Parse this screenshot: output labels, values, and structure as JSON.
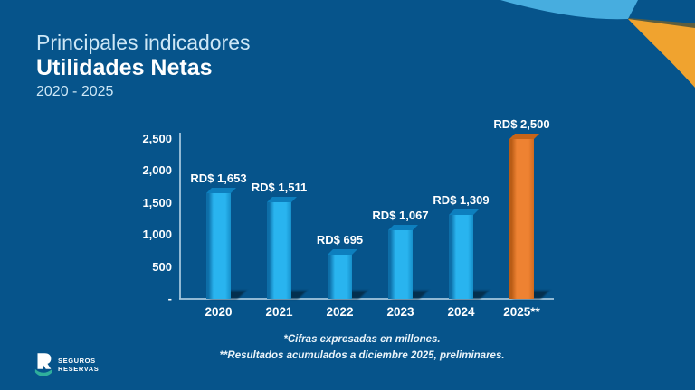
{
  "slide": {
    "title_line1": "Principales indicadores",
    "title_line2": "Utilidades Netas",
    "subtitle": "2020 - 2025",
    "footnotes": [
      "*Cifras expresadas en millones.",
      "**Resultados acumulados a diciembre 2025, preliminares."
    ],
    "logo": {
      "line1": "SEGUROS",
      "line2": "RESERVAS"
    }
  },
  "chart_data": {
    "type": "bar",
    "title": "Utilidades Netas 2020 - 2025",
    "categories": [
      "2020",
      "2021",
      "2022",
      "2023",
      "2024",
      "2025**"
    ],
    "values": [
      1653,
      1511,
      695,
      1067,
      1309,
      2500
    ],
    "labels": [
      "RD$ 1,653",
      "RD$ 1,511",
      "RD$ 695",
      "RD$ 1,067",
      "RD$ 1,309",
      "RD$ 2,500"
    ],
    "bar_colors": [
      "blue",
      "blue",
      "blue",
      "blue",
      "blue",
      "orange"
    ],
    "y_ticks": [
      "2,500",
      "2,000",
      "1,500",
      "1,000",
      "500",
      "-"
    ],
    "y_tick_values": [
      2500,
      2000,
      1500,
      1000,
      500,
      0
    ],
    "ylim": [
      0,
      2500
    ],
    "xlabel": "",
    "ylabel": "",
    "grid": false,
    "legend": false,
    "currency_unit": "RD$ millones"
  },
  "colors": {
    "background": "#06548B",
    "bar_blue": "#29B4EF",
    "bar_blue_dark": "#0D6EA8",
    "bar_blue_mid": "#1690CB",
    "bar_top_blue": "#0D7FBE",
    "bar_orange": "#EE8232",
    "bar_orange_dark": "#B95C15",
    "bar_orange_mid": "#D06B1F",
    "bar_top_orange": "#C76418",
    "shadow": "#03263F",
    "axis": "#AACBE0",
    "title_light": "#CDE7F6",
    "white": "#FFFFFF",
    "swoosh_cyan": "#47ADDF",
    "swoosh_orange": "#F0A32F",
    "swoosh_edge": "#6E6030",
    "logo_teal": "#2FAF9C"
  }
}
